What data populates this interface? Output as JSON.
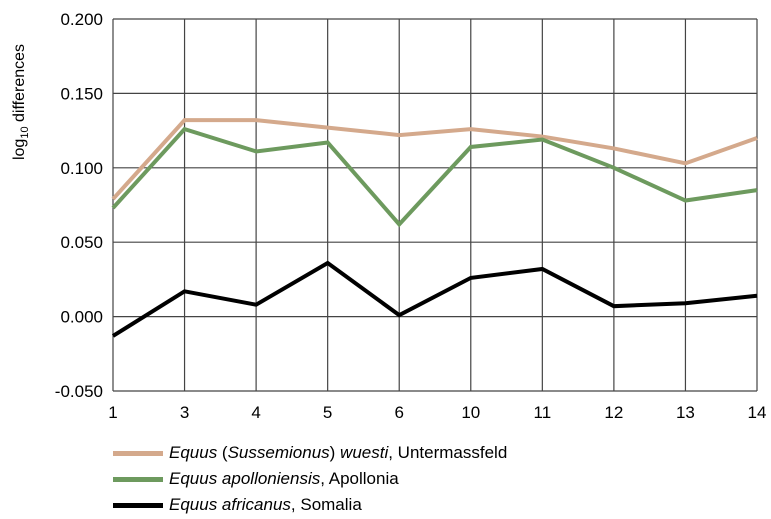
{
  "chart_data": {
    "type": "line",
    "title": "",
    "xlabel": "",
    "ylabel": "log10 differences",
    "ylabel_parts": {
      "base": "log",
      "sub": "10",
      "rest": " differences"
    },
    "categories": [
      "1",
      "3",
      "4",
      "5",
      "6",
      "10",
      "11",
      "12",
      "13",
      "14"
    ],
    "ylim": [
      -0.05,
      0.2
    ],
    "yticks": [
      "0.200",
      "0.150",
      "0.100",
      "0.050",
      "0.000",
      "-0.050"
    ],
    "ytick_values": [
      0.2,
      0.15,
      0.1,
      0.05,
      0.0,
      -0.05
    ],
    "grid": true,
    "legend_position": "bottom-left",
    "series": [
      {
        "name": "Equus (Sussemionus) wuesti, Untermassfeld",
        "name_parts": [
          {
            "text": "Equus",
            "italic": true
          },
          {
            "text": " (",
            "italic": false
          },
          {
            "text": "Sussemionus",
            "italic": true
          },
          {
            "text": ") ",
            "italic": false
          },
          {
            "text": "wuesti",
            "italic": true
          },
          {
            "text": ", Untermassfeld",
            "italic": false
          }
        ],
        "color": "#d4a98c",
        "values": [
          0.079,
          0.132,
          0.132,
          0.127,
          0.122,
          0.126,
          0.121,
          0.113,
          0.103,
          0.12
        ]
      },
      {
        "name": "Equus apolloniensis, Apollonia",
        "name_parts": [
          {
            "text": "Equus apolloniensis",
            "italic": true
          },
          {
            "text": ", Apollonia",
            "italic": false
          }
        ],
        "color": "#6d9a5e",
        "values": [
          0.073,
          0.126,
          0.111,
          0.117,
          0.062,
          0.114,
          0.119,
          0.1,
          0.078,
          0.085
        ]
      },
      {
        "name": "Equus africanus, Somalia",
        "name_parts": [
          {
            "text": "Equus africanus",
            "italic": true
          },
          {
            "text": ", Somalia",
            "italic": false
          }
        ],
        "color": "#000000",
        "values": [
          -0.013,
          0.017,
          0.008,
          0.036,
          0.001,
          0.026,
          0.032,
          0.007,
          0.009,
          0.014
        ]
      }
    ]
  }
}
